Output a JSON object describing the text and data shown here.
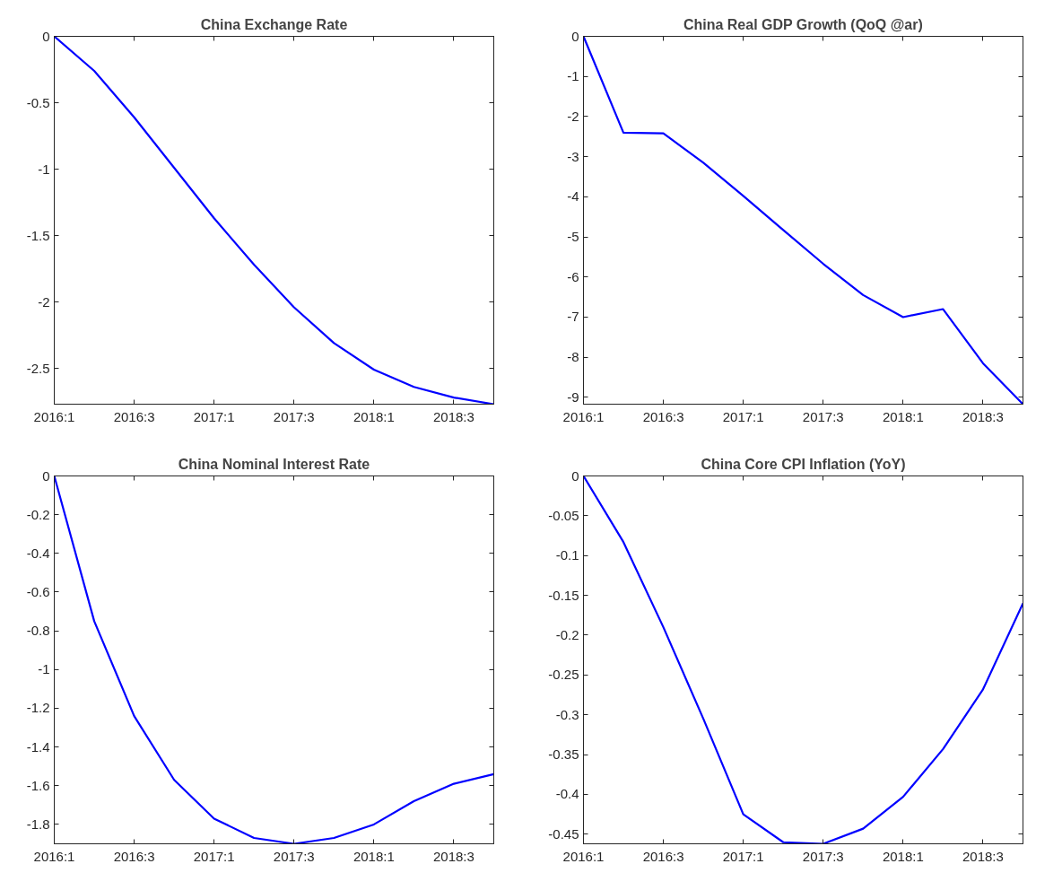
{
  "chart_data": [
    {
      "type": "line",
      "title": "China Exchange Rate",
      "categories": [
        "2016:1",
        null,
        "2016:3",
        null,
        "2017:1",
        null,
        "2017:3",
        null,
        "2018:1",
        null,
        "2018:3",
        null
      ],
      "ylim": [
        -2.77,
        0
      ],
      "yticks": [
        0,
        -0.5,
        -1,
        -1.5,
        -2,
        -2.5
      ],
      "grid": false,
      "line_style": "solid",
      "series": [
        {
          "color": "#0000ff",
          "values": [
            0,
            -0.26,
            -0.61,
            -0.99,
            -1.37,
            -1.72,
            -2.04,
            -2.31,
            -2.51,
            -2.64,
            -2.72,
            -2.77
          ]
        }
      ]
    },
    {
      "type": "line",
      "title": "China Real GDP Growth (QoQ @ar)",
      "categories": [
        "2016:1",
        null,
        "2016:3",
        null,
        "2017:1",
        null,
        "2017:3",
        null,
        "2018:1",
        null,
        "2018:3",
        null
      ],
      "ylim": [
        -9.17,
        0
      ],
      "yticks": [
        0,
        -1,
        -2,
        -3,
        -4,
        -5,
        -6,
        -7,
        -8,
        -9
      ],
      "grid": false,
      "line_style": "solid",
      "series": [
        {
          "color": "#0000ff",
          "values": [
            0,
            -2.4,
            -2.42,
            -3.15,
            -3.98,
            -4.83,
            -5.67,
            -6.45,
            -7.0,
            -6.8,
            -8.15,
            -9.17
          ]
        }
      ]
    },
    {
      "type": "line",
      "title": "China Nominal Interest Rate",
      "categories": [
        "2016:1",
        null,
        "2016:3",
        null,
        "2017:1",
        null,
        "2017:3",
        null,
        "2018:1",
        null,
        "2018:3",
        null
      ],
      "ylim": [
        -1.9,
        0
      ],
      "yticks": [
        0,
        -0.2,
        -0.4,
        -0.6,
        -0.8,
        -1,
        -1.2,
        -1.4,
        -1.6,
        -1.8
      ],
      "grid": false,
      "line_style": "solid",
      "series": [
        {
          "color": "#0000ff",
          "values": [
            0,
            -0.75,
            -1.24,
            -1.57,
            -1.77,
            -1.87,
            -1.9,
            -1.87,
            -1.8,
            -1.68,
            -1.59,
            -1.54
          ]
        }
      ]
    },
    {
      "type": "line",
      "title": "China Core CPI Inflation (YoY)",
      "categories": [
        "2016:1",
        null,
        "2016:3",
        null,
        "2017:1",
        null,
        "2017:3",
        null,
        "2018:1",
        null,
        "2018:3",
        null
      ],
      "ylim": [
        -0.462,
        0
      ],
      "yticks": [
        0,
        -0.05,
        -0.1,
        -0.15,
        -0.2,
        -0.25,
        -0.3,
        -0.35,
        -0.4,
        -0.45
      ],
      "grid": false,
      "line_style": "solid",
      "series": [
        {
          "color": "#0000ff",
          "values": [
            0,
            -0.083,
            -0.19,
            -0.305,
            -0.425,
            -0.46,
            -0.462,
            -0.443,
            -0.403,
            -0.343,
            -0.268,
            -0.16
          ]
        }
      ]
    }
  ]
}
